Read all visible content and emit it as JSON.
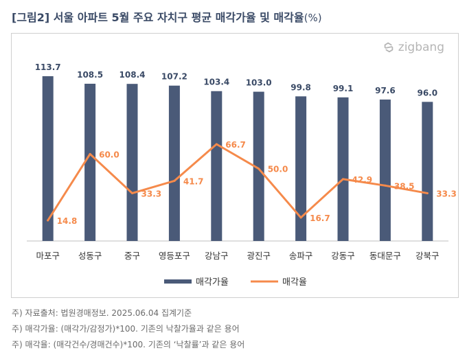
{
  "title": "[그림2] 서울 아파트 5월 주요 자치구 평균 매각가율 및 매각율",
  "title_suffix": "(%)",
  "logo_text": "zigbang",
  "chart_data": {
    "type": "bar",
    "categories": [
      "마포구",
      "성동구",
      "중구",
      "영등포구",
      "강남구",
      "광진구",
      "송파구",
      "강동구",
      "동대문구",
      "강북구"
    ],
    "series": [
      {
        "name": "매각가율",
        "type": "bar",
        "color": "#4a5a78",
        "values": [
          113.7,
          108.5,
          108.4,
          107.2,
          103.4,
          103.0,
          99.8,
          99.1,
          97.6,
          96.0
        ],
        "labels": [
          "113.7",
          "108.5",
          "108.4",
          "107.2",
          "103.4",
          "103.0",
          "99.8",
          "99.1",
          "97.6",
          "96.0"
        ]
      },
      {
        "name": "매각율",
        "type": "line",
        "color": "#f58a4b",
        "values": [
          14.8,
          60.0,
          33.3,
          41.7,
          66.7,
          50.0,
          16.7,
          42.9,
          38.5,
          33.3
        ],
        "labels": [
          "14.8",
          "60.0",
          "33.3",
          "41.7",
          "66.7",
          "50.0",
          "16.7",
          "42.9",
          "38.5",
          "33.3"
        ]
      }
    ],
    "legend_position": "bottom",
    "grid": false
  },
  "notes": [
    "주) 자료출처: 법원경매정보. 2025.06.04 집계기준",
    "주) 매각가율: (매각가/감정가)*100. 기존의 낙찰가율과 같은 용어",
    "주) 매각율: (매각건수/경매건수)*100. 기존의 ‘낙찰률’과 같은 용어"
  ],
  "colors": {
    "title": "#3a4a66",
    "bar": "#4a5a78",
    "line": "#f58a4b"
  },
  "icons": {
    "logo": "zigbang-logo-icon"
  }
}
